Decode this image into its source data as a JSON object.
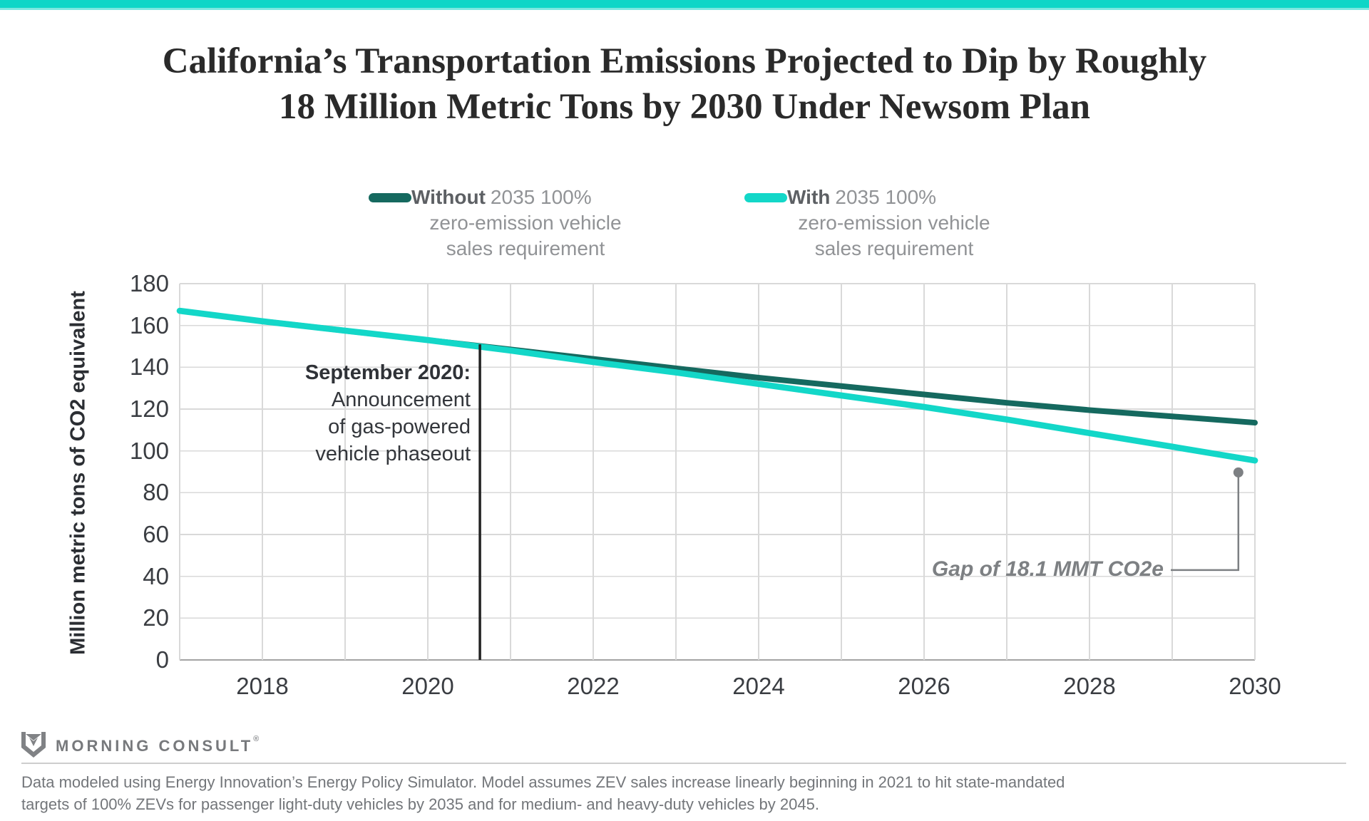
{
  "topbar_color": "#0ed6c7",
  "title": {
    "line1": "California’s Transportation Emissions Projected to Dip by Roughly",
    "line2": "18 Million Metric Tons by 2030 Under Newsom Plan"
  },
  "legend": [
    {
      "bold": "Without",
      "rest": "2035 100%",
      "line2": "zero-emission vehicle",
      "line3": "sales requirement",
      "color": "#15695F"
    },
    {
      "bold": "With",
      "rest": "2035 100%",
      "line2": "zero-emission vehicle",
      "line3": "sales requirement",
      "color": "#13D7C8"
    }
  ],
  "chart_data": {
    "type": "line",
    "x": [
      2017,
      2018,
      2019,
      2020,
      2021,
      2022,
      2023,
      2024,
      2025,
      2026,
      2027,
      2028,
      2029,
      2030
    ],
    "series": [
      {
        "name": "Without 2035 100% zero-emission vehicle sales requirement",
        "color": "#15695F",
        "values": [
          167,
          162,
          157.5,
          153,
          148.5,
          144,
          139.5,
          135,
          131,
          127,
          123,
          119.5,
          116.5,
          113.5
        ]
      },
      {
        "name": "With 2035 100% zero-emission vehicle sales requirement",
        "color": "#13D7C8",
        "values": [
          167,
          162,
          157.5,
          153,
          148,
          142.5,
          137.5,
          132,
          126.5,
          121,
          115,
          108.5,
          102,
          95.4
        ]
      }
    ],
    "ylabel": "Million metric tons of CO2 equivalent",
    "xlabel": "",
    "ylim": [
      0,
      180
    ],
    "ytick_step": 20,
    "xticks_labeled": [
      2018,
      2020,
      2022,
      2024,
      2026,
      2028,
      2030
    ],
    "grid": true,
    "grid_color": "#d9d9d9",
    "axis_color": "#a3a3a3",
    "event_line": {
      "x": 2020.63,
      "y_top": 151,
      "color": "#222222",
      "label_line1": "September 2020:",
      "label_line2": "Announcement",
      "label_line3": "of gas-powered",
      "label_line4": "vehicle phaseout"
    },
    "gap_annotation": {
      "label": "Gap of 18.1 MMT CO2e",
      "gap_value": 18.1,
      "dot_year": 2029.8,
      "dot_value": 89.7,
      "elbow_value": 43,
      "color": "#7d8083"
    }
  },
  "logo": {
    "text": "MORNING CONSULT",
    "reg": "®"
  },
  "footer": {
    "line1": "Data modeled using Energy Innovation’s Energy Policy Simulator. Model assumes ZEV sales increase linearly beginning in 2021 to hit state-mandated",
    "line2": "targets of 100% ZEVs for passenger light-duty vehicles by 2035 and for medium- and heavy-duty vehicles by 2045."
  }
}
